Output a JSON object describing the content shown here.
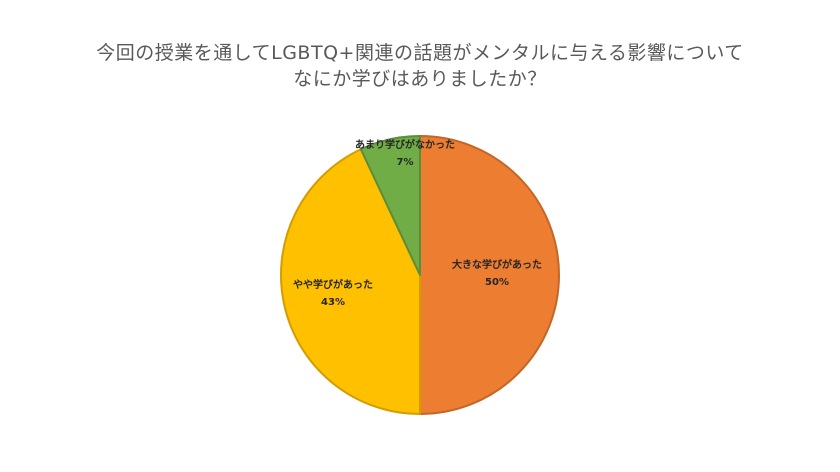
{
  "chart_data": {
    "type": "pie",
    "title_lines": [
      "今回の授業を通してLGBTQ+関連の話題がメンタルに与える影響について",
      "なにか学びはありましたか？"
    ],
    "slices": [
      {
        "label": "大きな学びがあった",
        "value": 50,
        "value_label": "50%",
        "color": "#ED7D31"
      },
      {
        "label": "やや学びがあった",
        "value": 43,
        "value_label": "43%",
        "color": "#FFC000"
      },
      {
        "label": "あまり学びがなかった",
        "value": 7,
        "value_label": "7%",
        "color": "#70AD47"
      }
    ],
    "legend": "none",
    "data_labels": "category-and-percent"
  }
}
